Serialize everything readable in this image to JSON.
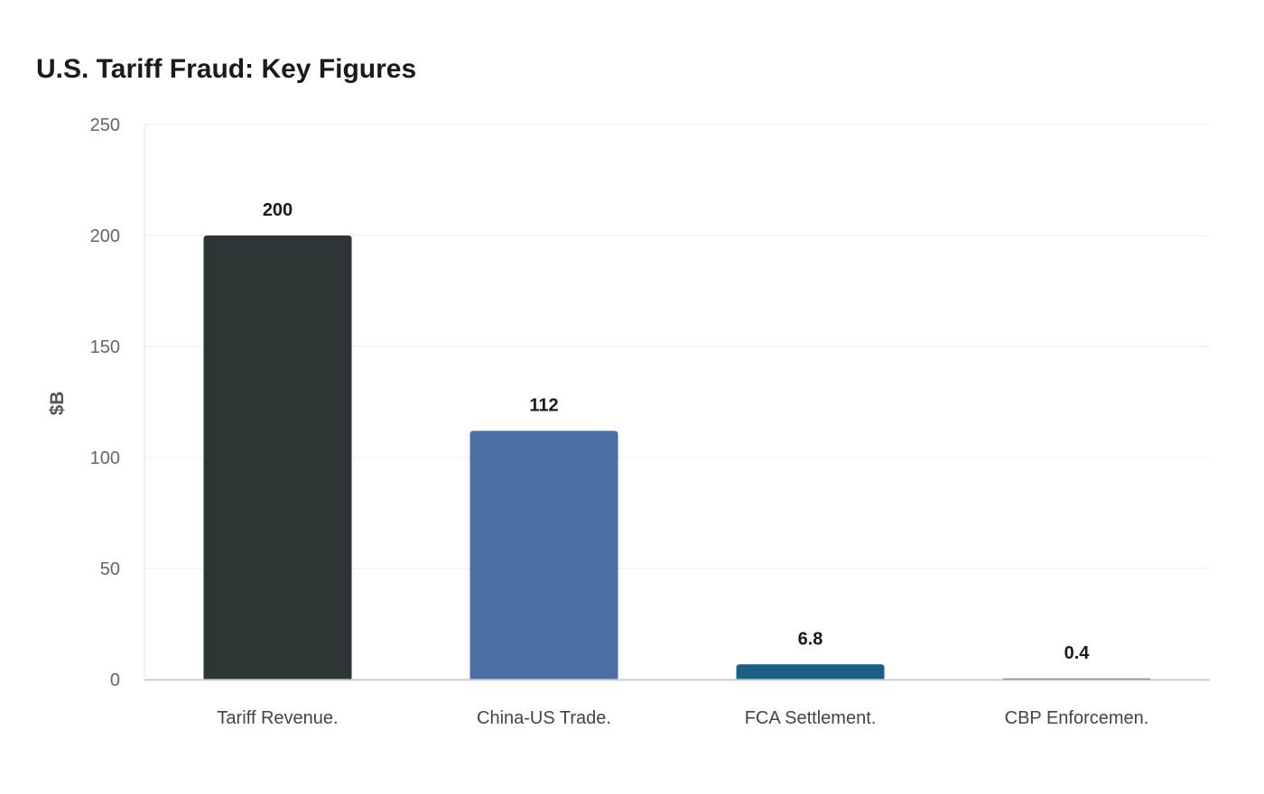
{
  "chart_data": {
    "type": "bar",
    "title": "U.S. Tariff Fraud: Key Figures",
    "xlabel": "",
    "ylabel": "$B",
    "ylim": [
      0,
      250
    ],
    "yticks": [
      0,
      50,
      100,
      150,
      200,
      250
    ],
    "grid": true,
    "categories": [
      "Tariff Revenue.",
      "China-US Trade.",
      "FCA Settlement.",
      "CBP Enforcemen."
    ],
    "values": [
      200,
      112,
      6.8,
      0.4
    ],
    "data_labels": [
      "200",
      "112",
      "6.8",
      "0.4"
    ],
    "colors": [
      "#2d3436",
      "#4a6fa5",
      "#1a5f85",
      "#2d3436"
    ]
  }
}
